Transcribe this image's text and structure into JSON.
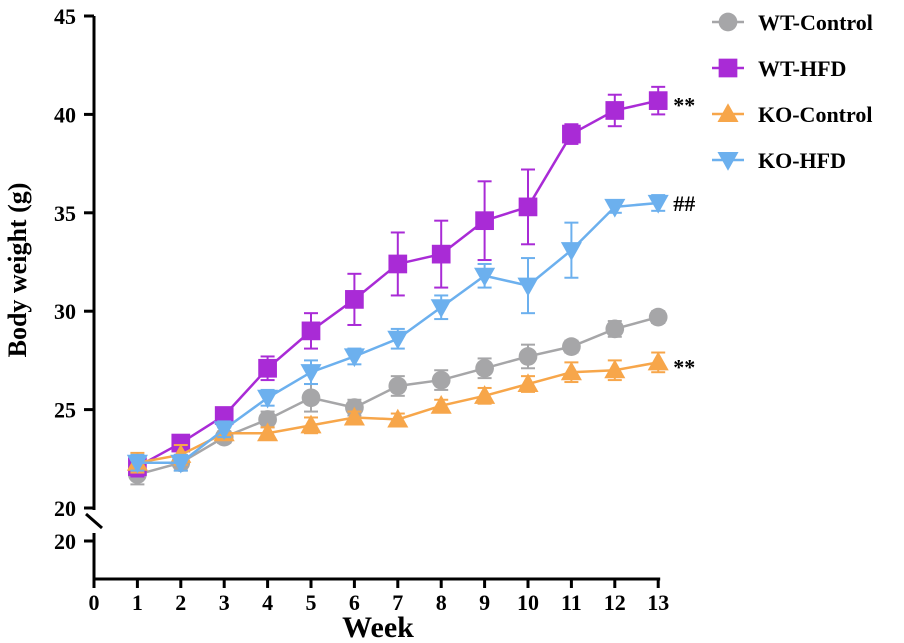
{
  "chart_data": {
    "type": "line",
    "title": "",
    "xlabel": "Week",
    "ylabel": "Body weight (g)",
    "x": [
      1,
      2,
      3,
      4,
      5,
      6,
      7,
      8,
      9,
      10,
      11,
      12,
      13
    ],
    "xlim": [
      0,
      13
    ],
    "xticks": [
      "0",
      "1",
      "2",
      "3",
      "4",
      "5",
      "6",
      "7",
      "8",
      "9",
      "10",
      "11",
      "12",
      "13"
    ],
    "ylim": [
      20,
      45
    ],
    "yticks": [
      "20",
      "25",
      "30",
      "35",
      "40",
      "45"
    ],
    "y_break_label": "20",
    "grid": false,
    "legend_position": "top-right",
    "series": [
      {
        "name": "WT-Control",
        "color": "#a6a6a8",
        "marker": "circle",
        "values": [
          21.7,
          22.3,
          23.6,
          24.5,
          25.6,
          25.1,
          26.2,
          26.5,
          27.1,
          27.7,
          28.2,
          29.1,
          29.7
        ],
        "errors": [
          0.5,
          0.4,
          0.3,
          0.4,
          0.7,
          0.4,
          0.5,
          0.5,
          0.5,
          0.6,
          0.3,
          0.4,
          0.3
        ]
      },
      {
        "name": "WT-HFD",
        "color": "#a92bd6",
        "marker": "square",
        "values": [
          22.1,
          23.3,
          24.7,
          27.1,
          29.0,
          30.6,
          32.4,
          32.9,
          34.6,
          35.3,
          39.0,
          40.2,
          40.7
        ],
        "errors": [
          0.5,
          0.3,
          0.3,
          0.6,
          0.9,
          1.3,
          1.6,
          1.7,
          2.0,
          1.9,
          0.5,
          0.8,
          0.7
        ]
      },
      {
        "name": "KO-Control",
        "color": "#f7a64a",
        "marker": "triangle-up",
        "values": [
          22.3,
          22.7,
          23.8,
          23.8,
          24.2,
          24.6,
          24.5,
          25.2,
          25.7,
          26.3,
          26.9,
          27.0,
          27.4
        ],
        "errors": [
          0.5,
          0.5,
          0.3,
          0.3,
          0.4,
          0.3,
          0.3,
          0.3,
          0.4,
          0.4,
          0.5,
          0.5,
          0.5
        ]
      },
      {
        "name": "KO-HFD",
        "color": "#6cb0ee",
        "marker": "triangle-down",
        "values": [
          22.3,
          22.3,
          24.0,
          25.6,
          26.9,
          27.7,
          28.6,
          30.2,
          31.8,
          31.3,
          33.1,
          35.3,
          35.5
        ],
        "errors": [
          0.4,
          0.4,
          0.4,
          0.4,
          0.6,
          0.4,
          0.5,
          0.6,
          0.6,
          1.4,
          1.4,
          0.3,
          0.4
        ]
      }
    ],
    "annotations": [
      {
        "series": "WT-HFD",
        "text": "**"
      },
      {
        "series": "KO-HFD",
        "text": "##"
      },
      {
        "series": "KO-Control",
        "text": "**"
      }
    ]
  }
}
